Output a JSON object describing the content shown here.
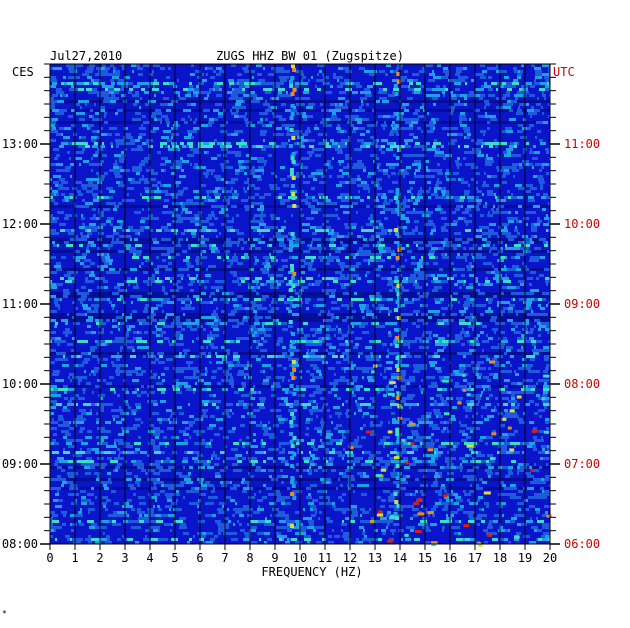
{
  "chart_data": {
    "type": "heatmap",
    "date": "Jul27,2010",
    "title": "ZUGS HHZ BW 01 (Zugspitze)",
    "xlabel": "FREQUENCY (HZ)",
    "left_axis_label": "CES",
    "right_axis_label": "UTC",
    "xlim": [
      0,
      20
    ],
    "x_ticks": [
      "0",
      "1",
      "2",
      "3",
      "4",
      "5",
      "6",
      "7",
      "8",
      "9",
      "10",
      "11",
      "12",
      "13",
      "14",
      "15",
      "16",
      "17",
      "18",
      "19",
      "20"
    ],
    "left_time_ticks": [
      "13:00",
      "12:00",
      "11:00",
      "10:00",
      "09:00",
      "08:00"
    ],
    "right_time_ticks": [
      "11:00",
      "10:00",
      "09:00",
      "08:00",
      "07:00",
      "06:00"
    ],
    "time_range_ces": [
      "08:00",
      "13:45"
    ],
    "background_color": "#0a14c8",
    "right_axis_color": "#cc0000",
    "footnote_mark": "*",
    "bright_frequency_bands_hz": [
      9.7,
      13.9
    ],
    "colormap": [
      "#000c78",
      "#0a14c8",
      "#1e5adc",
      "#1ea0e6",
      "#3cdcc8",
      "#dcdc3c",
      "#f08c14",
      "#dc1e0a"
    ]
  }
}
